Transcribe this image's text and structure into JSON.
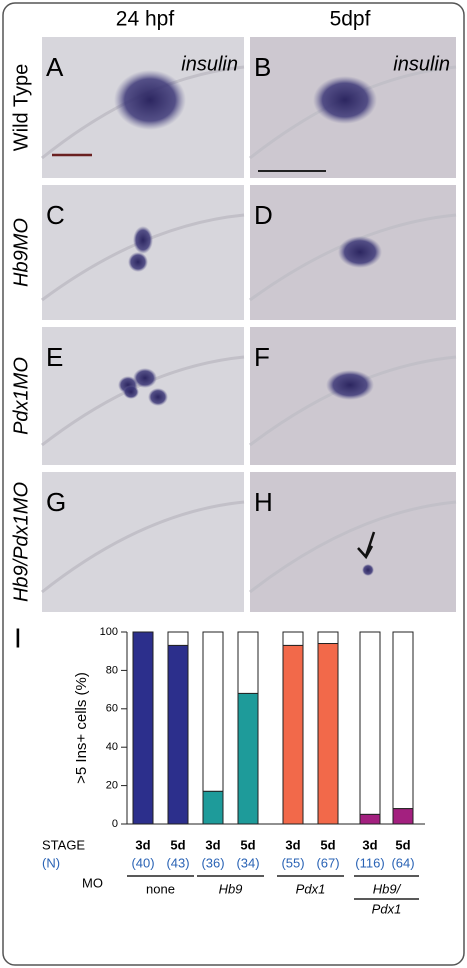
{
  "columns": [
    "24 hpf",
    "5dpf"
  ],
  "rows": [
    "Wild Type",
    "Hb9MO",
    "Pdx1MO",
    "Hb9/Pdx1MO"
  ],
  "panels": [
    {
      "letter": "A",
      "label": "insulin"
    },
    {
      "letter": "B",
      "label": "insulin"
    },
    {
      "letter": "C"
    },
    {
      "letter": "D"
    },
    {
      "letter": "E"
    },
    {
      "letter": "F"
    },
    {
      "letter": "G"
    },
    {
      "letter": "H"
    }
  ],
  "chart_data": {
    "type": "bar",
    "panel": "I",
    "y_label": ">5 Ins+ cells (%)",
    "categories": [
      "3d",
      "5d",
      "3d",
      "5d",
      "3d",
      "5d",
      "3d",
      "5d"
    ],
    "values": [
      100,
      93,
      17,
      68,
      93,
      94,
      5,
      8
    ],
    "colors": [
      "#2c2f8c",
      "#2c2f8c",
      "#1e9b9a",
      "#1e9b9a",
      "#f2694a",
      "#f2694a",
      "#a3207f",
      "#a3207f"
    ],
    "n_labels": [
      "(40)",
      "(43)",
      "(36)",
      "(34)",
      "(55)",
      "(67)",
      "(116)",
      "(64)"
    ],
    "row_labels": [
      "STAGE",
      "(N)",
      "MO"
    ],
    "groups": [
      [
        "none"
      ],
      [
        "Hb9"
      ],
      [
        "Pdx1"
      ],
      [
        "Hb9/",
        "Pdx1"
      ]
    ],
    "ylim": [
      0,
      100
    ],
    "yticks": [
      0,
      20,
      40,
      60,
      80,
      100
    ]
  }
}
